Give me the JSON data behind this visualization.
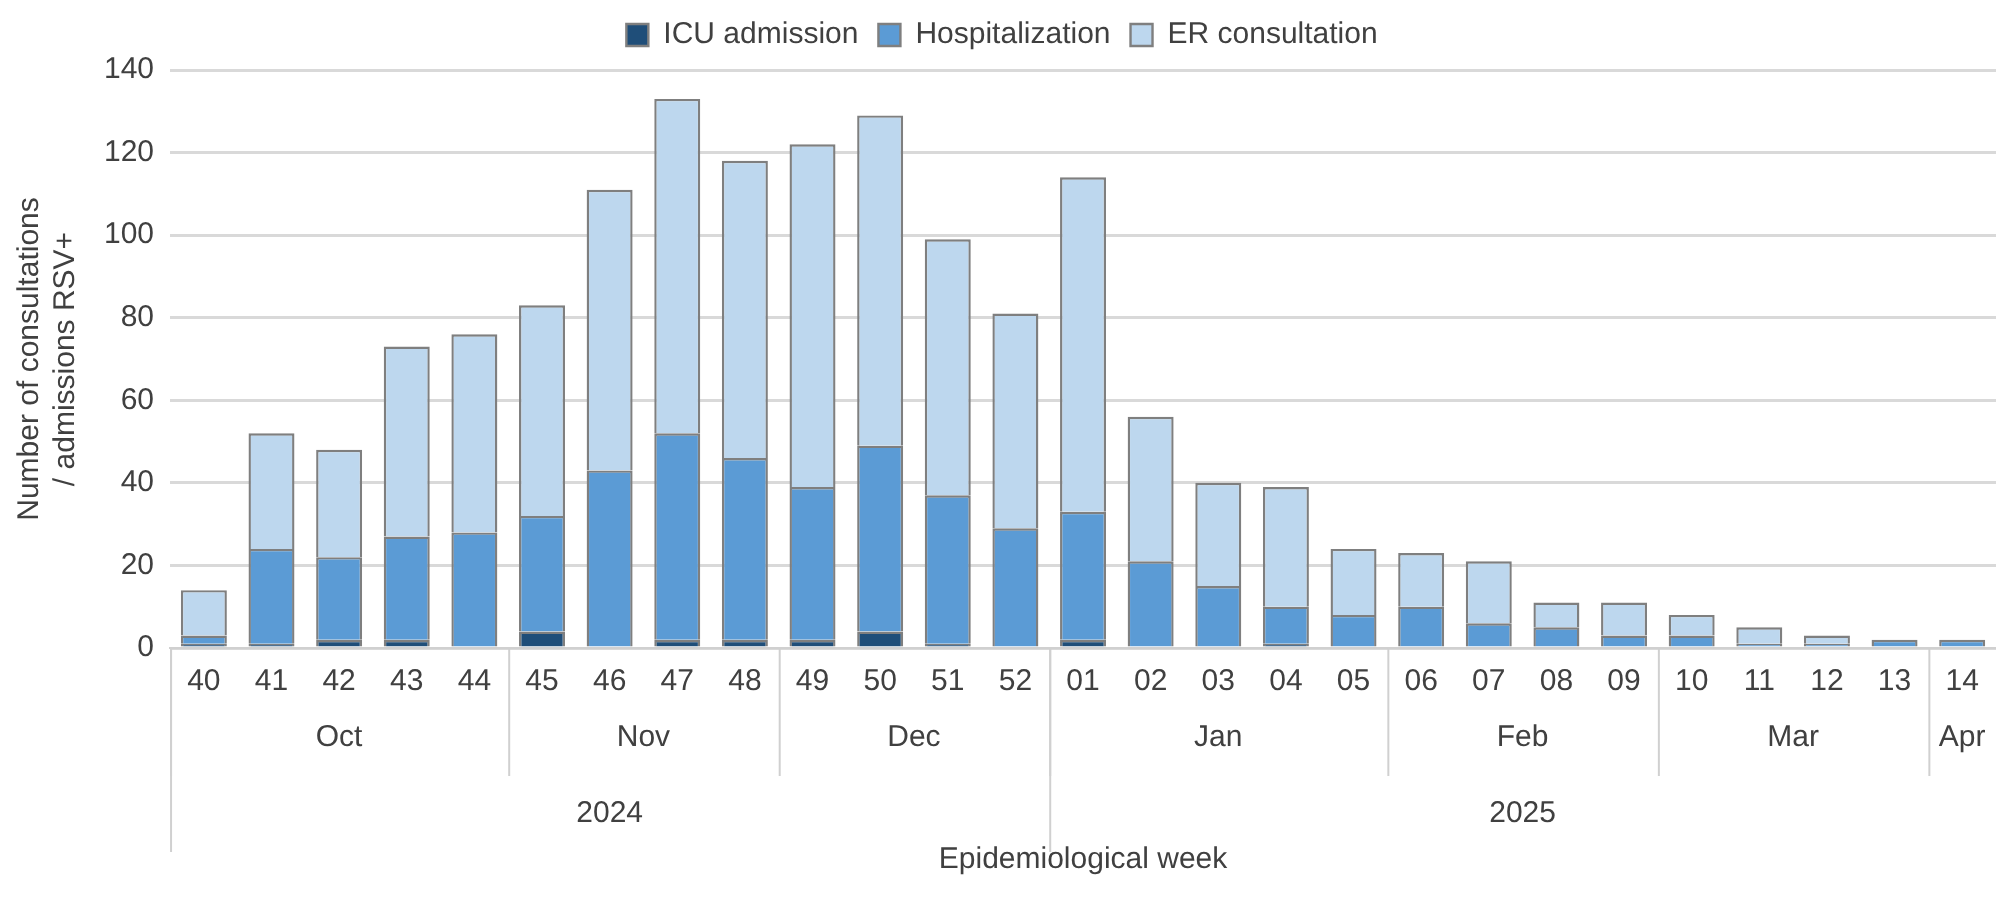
{
  "chart_data": {
    "type": "bar",
    "stacked": true,
    "xlabel": "Epidemiological week",
    "ylabel": "Number of consultations / admissions RSV+",
    "categories": [
      "40",
      "41",
      "42",
      "43",
      "44",
      "45",
      "46",
      "47",
      "48",
      "49",
      "50",
      "51",
      "52",
      "01",
      "02",
      "03",
      "04",
      "05",
      "06",
      "07",
      "08",
      "09",
      "10",
      "11",
      "12",
      "13",
      "14"
    ],
    "series": [
      {
        "name": "ICU admission",
        "color": "#1f4e79",
        "values": [
          1,
          1,
          2,
          2,
          0,
          4,
          0,
          2,
          2,
          2,
          4,
          1,
          0,
          2,
          0,
          0,
          1,
          0,
          0,
          0,
          0,
          0,
          0,
          0,
          0,
          0,
          0
        ]
      },
      {
        "name": "Hospitalization",
        "color": "#5b9bd5",
        "values": [
          2,
          23,
          20,
          25,
          28,
          28,
          43,
          50,
          44,
          37,
          45,
          36,
          29,
          31,
          21,
          15,
          9,
          8,
          10,
          6,
          5,
          3,
          3,
          1,
          1,
          2,
          2
        ]
      },
      {
        "name": "ER consultation",
        "color": "#bdd7ee",
        "values": [
          11,
          28,
          26,
          46,
          48,
          51,
          68,
          81,
          72,
          83,
          80,
          62,
          52,
          81,
          35,
          25,
          29,
          16,
          13,
          15,
          6,
          8,
          5,
          4,
          2,
          null,
          null
        ]
      }
    ],
    "ylim": [
      0,
      140
    ],
    "yticks": [
      0,
      20,
      40,
      60,
      80,
      100,
      120,
      140
    ],
    "grid": "y",
    "legend": "top",
    "annotations": [
      "Oct",
      "Nov",
      "Dec",
      "Jan",
      "Feb",
      "Mar",
      "Apr",
      "2024",
      "2025"
    ]
  }
}
